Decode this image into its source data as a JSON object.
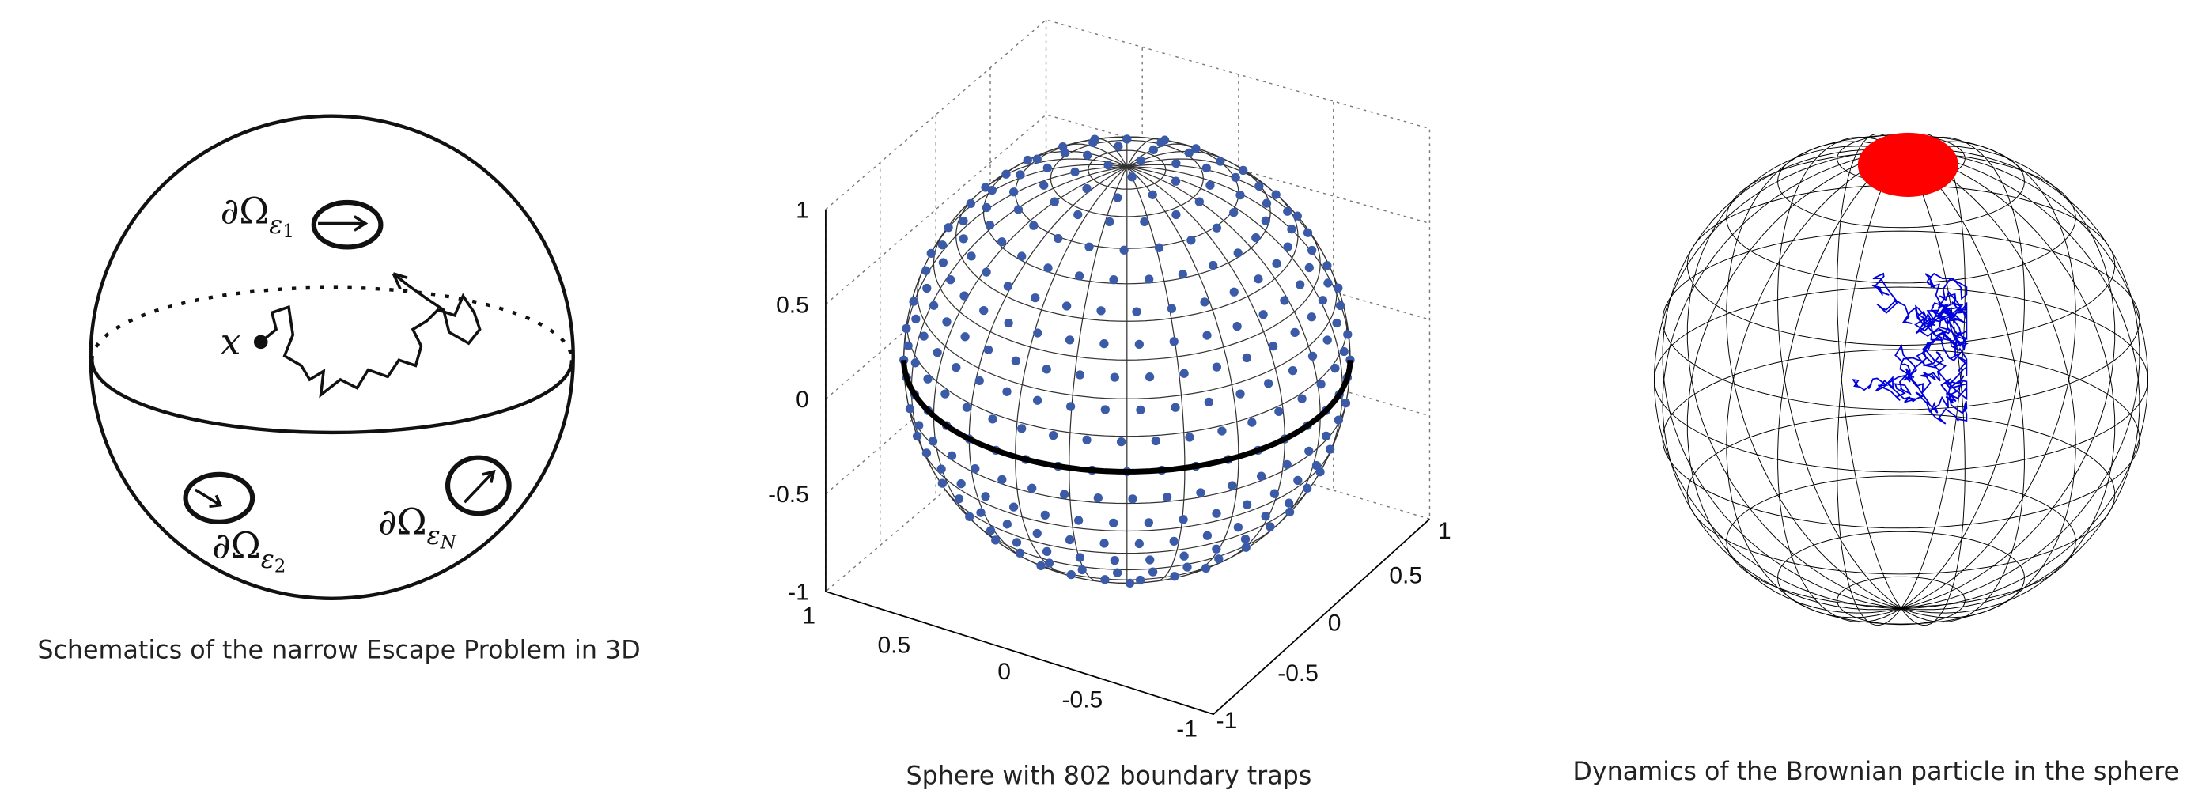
{
  "panels": [
    {
      "caption": "Schematics of the narrow Escape Problem in 3D",
      "labels": [
        {
          "base": "∂Ω",
          "sub": "ε",
          "subsub": "1"
        },
        {
          "base": "∂Ω",
          "sub": "ε",
          "subsub": "2"
        },
        {
          "base": "∂Ω",
          "sub": "ε",
          "subsub": "N"
        }
      ],
      "point_label": "x"
    },
    {
      "caption": "Sphere with 802 boundary traps",
      "z_ticks": [
        "1",
        "0.5",
        "0",
        "-0.5",
        "-1"
      ],
      "x_ticks": [
        "1",
        "0.5",
        "0",
        "-0.5",
        "-1"
      ],
      "y_ticks": [
        "-1",
        "-0.5",
        "0",
        "0.5",
        "1"
      ]
    },
    {
      "caption": "Dynamics of the Brownian particle in the sphere"
    }
  ]
}
